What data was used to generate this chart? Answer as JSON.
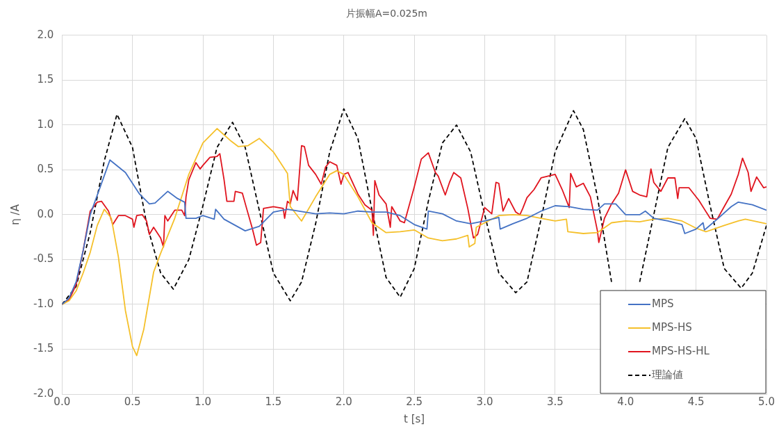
{
  "chart_data": {
    "type": "line",
    "title": "片振幅A=0.025m",
    "xlabel": "t [s]",
    "ylabel": "η /A",
    "xlim": [
      0,
      5
    ],
    "xticks": [
      {
        "value": 0,
        "label": "0.0"
      },
      {
        "value": 0.5,
        "label": "0.5"
      },
      {
        "value": 1,
        "label": "1.0"
      },
      {
        "value": 1.5,
        "label": "1.5"
      },
      {
        "value": 2,
        "label": "2.0"
      },
      {
        "value": 2.5,
        "label": "2.5"
      },
      {
        "value": 3,
        "label": "3.0"
      },
      {
        "value": 3.5,
        "label": "3.5"
      },
      {
        "value": 4,
        "label": "4.0"
      },
      {
        "value": 4.5,
        "label": "4.5"
      },
      {
        "value": 5,
        "label": "5.0"
      }
    ],
    "ylim": [
      -2,
      2
    ],
    "yticks": [
      {
        "value": -2,
        "label": "-2.0"
      },
      {
        "value": -1.5,
        "label": "-1.5"
      },
      {
        "value": -1,
        "label": "-1.0"
      },
      {
        "value": -0.5,
        "label": "-0.5"
      },
      {
        "value": 0,
        "label": "0.0"
      },
      {
        "value": 0.5,
        "label": "0.5"
      },
      {
        "value": 1,
        "label": "1.0"
      },
      {
        "value": 1.5,
        "label": "1.5"
      },
      {
        "value": 2,
        "label": "2.0"
      }
    ],
    "grid": true,
    "legend": "bottom right",
    "marker": "none",
    "series": [
      {
        "name": "MPS",
        "color": "#4472c4",
        "line_style": "solid",
        "x": [
          0,
          0.05,
          0.1,
          0.15,
          0.2,
          0.34,
          0.45,
          0.55,
          0.62,
          0.66,
          0.75,
          0.82,
          0.87,
          0.88,
          0.95,
          1.0,
          1.08,
          1.09,
          1.15,
          1.3,
          1.4,
          1.5,
          1.6,
          1.8,
          1.9,
          2.0,
          2.1,
          2.2,
          2.3,
          2.4,
          2.5,
          2.59,
          2.6,
          2.7,
          2.8,
          2.9,
          3.0,
          3.1,
          3.11,
          3.2,
          3.3,
          3.4,
          3.5,
          3.6,
          3.7,
          3.8,
          3.85,
          3.93,
          4.0,
          4.1,
          4.14,
          4.2,
          4.3,
          4.4,
          4.42,
          4.5,
          4.55,
          4.56,
          4.65,
          4.75,
          4.8,
          4.9,
          5.0
        ],
        "values": [
          -1,
          -0.93,
          -0.75,
          -0.4,
          0.0,
          0.61,
          0.47,
          0.23,
          0.12,
          0.13,
          0.26,
          0.18,
          0.14,
          -0.04,
          -0.04,
          -0.01,
          -0.05,
          0.06,
          -0.05,
          -0.18,
          -0.13,
          0.03,
          0.06,
          0.01,
          0.02,
          0.01,
          0.04,
          0.03,
          0.03,
          -0.01,
          -0.11,
          -0.16,
          0.04,
          0.01,
          -0.07,
          -0.1,
          -0.07,
          -0.03,
          -0.16,
          -0.1,
          -0.04,
          0.04,
          0.1,
          0.09,
          0.06,
          0.05,
          0.12,
          0.12,
          0.0,
          0.0,
          0.04,
          -0.04,
          -0.07,
          -0.11,
          -0.21,
          -0.16,
          -0.09,
          -0.17,
          -0.05,
          0.09,
          0.14,
          0.11,
          0.05
        ]
      },
      {
        "name": "MPS-HS",
        "color": "#f5c02a",
        "line_style": "solid",
        "x": [
          0,
          0.05,
          0.1,
          0.15,
          0.2,
          0.25,
          0.3,
          0.35,
          0.4,
          0.45,
          0.5,
          0.53,
          0.58,
          0.65,
          0.7,
          0.8,
          0.9,
          1.0,
          1.1,
          1.2,
          1.25,
          1.32,
          1.4,
          1.5,
          1.6,
          1.62,
          1.7,
          1.8,
          1.9,
          1.95,
          2.0,
          2.1,
          2.2,
          2.3,
          2.4,
          2.5,
          2.6,
          2.7,
          2.8,
          2.88,
          2.89,
          2.93,
          2.94,
          3.0,
          3.1,
          3.2,
          3.3,
          3.4,
          3.5,
          3.58,
          3.59,
          3.7,
          3.8,
          3.9,
          4.0,
          4.1,
          4.2,
          4.3,
          4.4,
          4.5,
          4.57,
          4.7,
          4.8,
          4.85,
          5.0
        ],
        "values": [
          -1,
          -0.96,
          -0.85,
          -0.65,
          -0.42,
          -0.12,
          0.06,
          -0.04,
          -0.47,
          -1.07,
          -1.47,
          -1.57,
          -1.28,
          -0.64,
          -0.43,
          -0.04,
          0.45,
          0.8,
          0.96,
          0.82,
          0.76,
          0.77,
          0.85,
          0.7,
          0.46,
          0.09,
          -0.07,
          0.2,
          0.45,
          0.49,
          0.45,
          0.2,
          -0.09,
          -0.2,
          -0.19,
          -0.17,
          -0.26,
          -0.29,
          -0.27,
          -0.23,
          -0.36,
          -0.32,
          -0.14,
          -0.09,
          -0.01,
          0.0,
          -0.01,
          -0.04,
          -0.07,
          -0.05,
          -0.19,
          -0.21,
          -0.2,
          -0.09,
          -0.07,
          -0.08,
          -0.05,
          -0.04,
          -0.07,
          -0.15,
          -0.19,
          -0.12,
          -0.07,
          -0.05,
          -0.1
        ]
      },
      {
        "name": "MPS-HS-HL",
        "color": "#e0141e",
        "line_style": "solid",
        "x": [
          0,
          0.05,
          0.1,
          0.15,
          0.2,
          0.25,
          0.28,
          0.33,
          0.36,
          0.4,
          0.45,
          0.5,
          0.51,
          0.53,
          0.57,
          0.6,
          0.62,
          0.65,
          0.7,
          0.72,
          0.73,
          0.75,
          0.8,
          0.85,
          0.87,
          0.88,
          0.9,
          0.95,
          0.98,
          1.0,
          1.05,
          1.1,
          1.12,
          1.15,
          1.17,
          1.22,
          1.23,
          1.28,
          1.31,
          1.35,
          1.38,
          1.41,
          1.43,
          1.5,
          1.57,
          1.58,
          1.6,
          1.62,
          1.64,
          1.67,
          1.7,
          1.72,
          1.75,
          1.8,
          1.84,
          1.87,
          1.9,
          1.95,
          1.98,
          2.0,
          2.03,
          2.1,
          2.15,
          2.2,
          2.21,
          2.22,
          2.25,
          2.3,
          2.33,
          2.34,
          2.4,
          2.43,
          2.5,
          2.55,
          2.6,
          2.65,
          2.67,
          2.72,
          2.75,
          2.78,
          2.83,
          2.88,
          2.92,
          2.95,
          3.0,
          3.05,
          3.08,
          3.1,
          3.13,
          3.17,
          3.22,
          3.25,
          3.27,
          3.3,
          3.35,
          3.4,
          3.45,
          3.5,
          3.55,
          3.6,
          3.61,
          3.65,
          3.7,
          3.75,
          3.8,
          3.81,
          3.85,
          3.9,
          3.95,
          4.0,
          4.05,
          4.1,
          4.15,
          4.18,
          4.2,
          4.25,
          4.3,
          4.35,
          4.37,
          4.38,
          4.45,
          4.52,
          4.6,
          4.65,
          4.7,
          4.75,
          4.8,
          4.83,
          4.87,
          4.89,
          4.93,
          4.98,
          5.0
        ],
        "values": [
          -1,
          -0.95,
          -0.78,
          -0.4,
          0.04,
          0.14,
          0.15,
          0.04,
          -0.11,
          -0.01,
          -0.01,
          -0.05,
          -0.14,
          -0.01,
          0.0,
          -0.07,
          -0.22,
          -0.14,
          -0.26,
          -0.36,
          -0.01,
          -0.07,
          0.05,
          0.05,
          -0.01,
          0.2,
          0.39,
          0.58,
          0.51,
          0.55,
          0.64,
          0.65,
          0.68,
          0.39,
          0.15,
          0.15,
          0.26,
          0.24,
          0.07,
          -0.15,
          -0.34,
          -0.31,
          0.07,
          0.09,
          0.07,
          -0.04,
          0.15,
          0.12,
          0.27,
          0.16,
          0.77,
          0.76,
          0.55,
          0.45,
          0.34,
          0.53,
          0.59,
          0.55,
          0.34,
          0.45,
          0.47,
          0.23,
          0.11,
          0.05,
          -0.23,
          0.38,
          0.22,
          0.12,
          -0.14,
          0.09,
          -0.07,
          -0.09,
          0.31,
          0.62,
          0.69,
          0.47,
          0.43,
          0.22,
          0.36,
          0.47,
          0.41,
          0.07,
          -0.26,
          -0.22,
          0.08,
          0.01,
          0.36,
          0.35,
          0.04,
          0.18,
          0.03,
          0.0,
          0.07,
          0.19,
          0.28,
          0.41,
          0.43,
          0.45,
          0.28,
          0.08,
          0.46,
          0.31,
          0.35,
          0.2,
          -0.18,
          -0.31,
          -0.04,
          0.12,
          0.24,
          0.5,
          0.26,
          0.22,
          0.2,
          0.51,
          0.36,
          0.26,
          0.41,
          0.41,
          0.18,
          0.3,
          0.3,
          0.16,
          -0.04,
          -0.05,
          0.09,
          0.23,
          0.45,
          0.63,
          0.47,
          0.26,
          0.42,
          0.3,
          0.31
        ]
      },
      {
        "name": "理論値",
        "color": "#000000",
        "line_style": "dashed",
        "x": [
          0,
          0.1,
          0.2,
          0.3,
          0.39,
          0.5,
          0.6,
          0.7,
          0.79,
          0.9,
          1.0,
          1.1,
          1.21,
          1.3,
          1.4,
          1.5,
          1.62,
          1.7,
          1.8,
          1.9,
          2.0,
          2.1,
          2.2,
          2.3,
          2.4,
          2.5,
          2.6,
          2.7,
          2.8,
          2.9,
          3.0,
          3.1,
          3.22,
          3.3,
          3.4,
          3.5,
          3.63,
          3.7,
          3.8,
          3.9,
          3.95,
          4.0,
          4.05,
          4.1,
          4.2,
          4.3,
          4.42,
          4.5,
          4.6,
          4.7,
          4.82,
          4.9,
          5.0
        ],
        "values": [
          -1,
          -0.8,
          -0.2,
          0.6,
          1.12,
          0.75,
          -0.1,
          -0.65,
          -0.83,
          -0.5,
          0.1,
          0.75,
          1.03,
          0.75,
          0.05,
          -0.65,
          -0.96,
          -0.75,
          -0.1,
          0.7,
          1.18,
          0.85,
          0.05,
          -0.7,
          -0.92,
          -0.6,
          0.15,
          0.8,
          1.0,
          0.7,
          0.0,
          -0.65,
          -0.87,
          -0.75,
          -0.05,
          0.7,
          1.16,
          0.95,
          0.2,
          -0.75,
          null,
          null,
          null,
          -0.75,
          0.0,
          0.75,
          1.07,
          0.85,
          0.1,
          -0.6,
          -0.82,
          -0.65,
          -0.12
        ]
      }
    ]
  }
}
